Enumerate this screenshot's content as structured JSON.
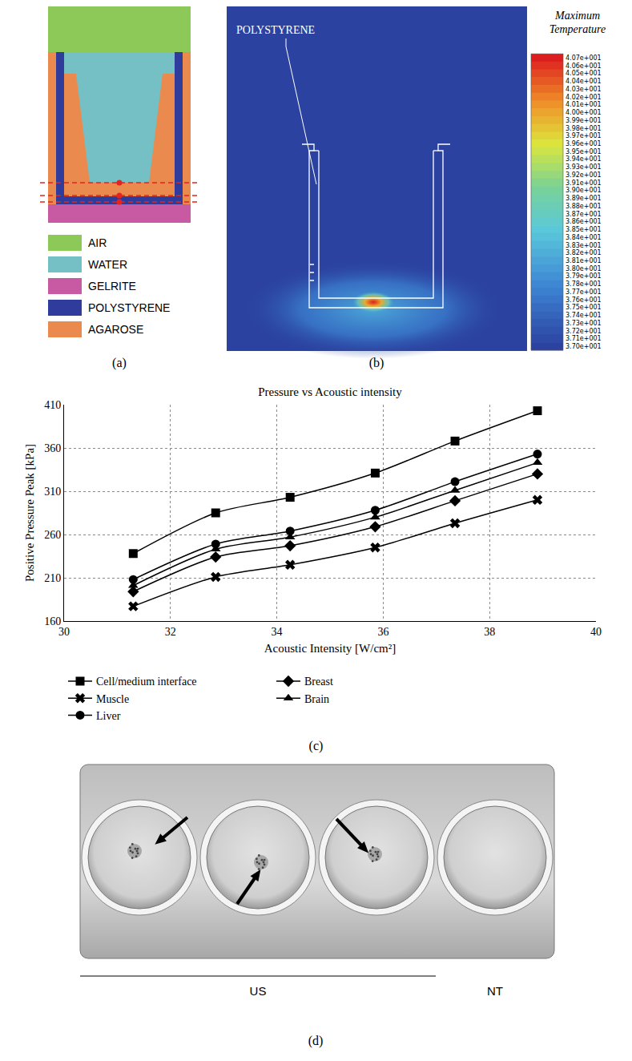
{
  "panels": {
    "a": {
      "label": "(a)",
      "legend": [
        {
          "name": "AIR",
          "color": "#8dc958"
        },
        {
          "name": "WATER",
          "color": "#74c0c4"
        },
        {
          "name": "GELRITE",
          "color": "#c75aa3"
        },
        {
          "name": "POLYSTYRENE",
          "color": "#2f3c9b"
        },
        {
          "name": "AGAROSE",
          "color": "#eb8a4f"
        }
      ]
    },
    "b": {
      "label": "(b)",
      "annotation": "POLYSTYRENE",
      "colorbar": {
        "title": "Maximum Temperature",
        "range": [
          37.0,
          40.7
        ],
        "ticks": [
          {
            "value": 40.7,
            "label": "4.07e+001"
          },
          {
            "value": 40.6,
            "label": "4.06e+001"
          },
          {
            "value": 40.5,
            "label": "4.05e+001"
          },
          {
            "value": 40.4,
            "label": "4.04e+001"
          },
          {
            "value": 40.3,
            "label": "4.03e+001"
          },
          {
            "value": 40.2,
            "label": "4.02e+001"
          },
          {
            "value": 40.1,
            "label": "4.01e+001"
          },
          {
            "value": 40.0,
            "label": "4.00e+001"
          },
          {
            "value": 39.9,
            "label": "3.99e+001"
          },
          {
            "value": 39.8,
            "label": "3.98e+001"
          },
          {
            "value": 39.7,
            "label": "3.97e+001"
          },
          {
            "value": 39.6,
            "label": "3.96e+001"
          },
          {
            "value": 39.5,
            "label": "3.95e+001"
          },
          {
            "value": 39.4,
            "label": "3.94e+001"
          },
          {
            "value": 39.3,
            "label": "3.93e+001"
          },
          {
            "value": 39.2,
            "label": "3.92e+001"
          },
          {
            "value": 39.1,
            "label": "3.91e+001"
          },
          {
            "value": 39.0,
            "label": "3.90e+001"
          },
          {
            "value": 38.9,
            "label": "3.89e+001"
          },
          {
            "value": 38.8,
            "label": "3.88e+001"
          },
          {
            "value": 38.7,
            "label": "3.87e+001"
          },
          {
            "value": 38.6,
            "label": "3.86e+001"
          },
          {
            "value": 38.5,
            "label": "3.85e+001"
          },
          {
            "value": 38.4,
            "label": "3.84e+001"
          },
          {
            "value": 38.3,
            "label": "3.83e+001"
          },
          {
            "value": 38.2,
            "label": "3.82e+001"
          },
          {
            "value": 38.1,
            "label": "3.81e+001"
          },
          {
            "value": 38.0,
            "label": "3.80e+001"
          },
          {
            "value": 37.9,
            "label": "3.79e+001"
          },
          {
            "value": 37.8,
            "label": "3.78e+001"
          },
          {
            "value": 37.7,
            "label": "3.77e+001"
          },
          {
            "value": 37.6,
            "label": "3.76e+001"
          },
          {
            "value": 37.5,
            "label": "3.75e+001"
          },
          {
            "value": 37.4,
            "label": "3.74e+001"
          },
          {
            "value": 37.3,
            "label": "3.73e+001"
          },
          {
            "value": 37.2,
            "label": "3.72e+001"
          },
          {
            "value": 37.1,
            "label": "3.71e+001"
          },
          {
            "value": 37.0,
            "label": "3.70e+001"
          }
        ]
      }
    },
    "d": {
      "label": "(d)",
      "groups": [
        {
          "label": "US",
          "wells": 3
        },
        {
          "label": "NT",
          "wells": 1
        }
      ]
    }
  },
  "chart_data": {
    "type": "line",
    "panel_label": "(c)",
    "title": "Pressure vs Acoustic intensity",
    "x_label": "Acoustic Intensity [W/cm²]",
    "y_label": "Positive Pressure Peak [kPa]",
    "x": [
      31.3,
      32.85,
      34.25,
      35.85,
      37.35,
      38.9
    ],
    "series": [
      {
        "name": "Cell/medium interface",
        "color": "#000000",
        "marker": "square",
        "line_style": "solid",
        "values": [
          238,
          285,
          303,
          331,
          368,
          403
        ]
      },
      {
        "name": "Breast",
        "color": "#000000",
        "marker": "diamond",
        "line_style": "solid",
        "values": [
          194,
          234,
          247,
          269,
          299,
          330
        ]
      },
      {
        "name": "Muscle",
        "color": "#000000",
        "marker": "x",
        "line_style": "solid",
        "values": [
          177,
          211,
          225,
          245,
          273,
          300
        ]
      },
      {
        "name": "Brain",
        "color": "#000000",
        "marker": "triangle",
        "line_style": "solid",
        "values": [
          201,
          243,
          257,
          280,
          311,
          343
        ]
      },
      {
        "name": "Liver",
        "color": "#000000",
        "marker": "circle",
        "line_style": "solid",
        "values": [
          208,
          249,
          264,
          288,
          321,
          353
        ]
      }
    ],
    "xlim": [
      30,
      40
    ],
    "xticks": [
      30,
      32,
      34,
      36,
      38,
      40
    ],
    "ylim": [
      160,
      410
    ],
    "yticks": [
      160,
      210,
      260,
      310,
      360,
      410
    ],
    "grid": true,
    "legend": "bottom"
  }
}
